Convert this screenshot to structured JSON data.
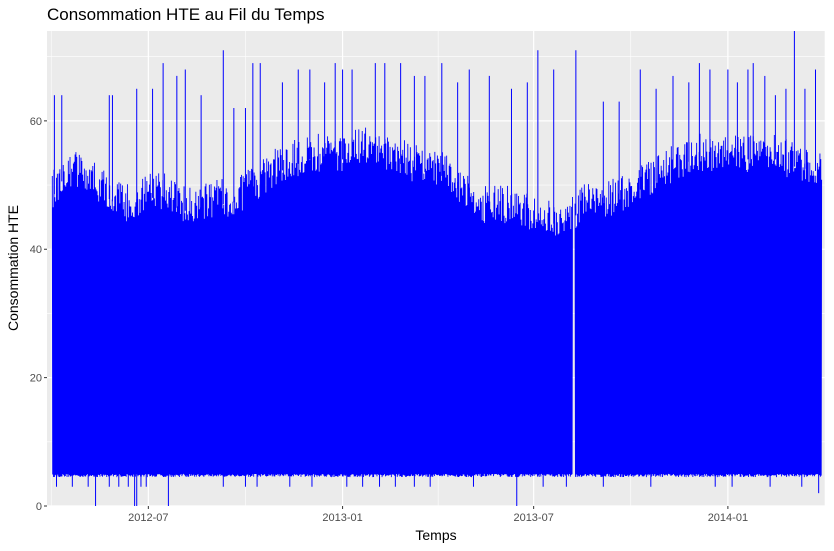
{
  "chart_data": {
    "type": "line",
    "title": "Consommation HTE au Fil du Temps",
    "xlabel": "Temps",
    "ylabel": "Consommation HTE",
    "xlim": [
      "2012-03-27",
      "2014-04-03"
    ],
    "ylim": [
      0,
      74
    ],
    "x_ticks": [
      {
        "date": "2012-07-01",
        "label": "2012-07"
      },
      {
        "date": "2013-01-01",
        "label": "2013-01"
      },
      {
        "date": "2013-07-01",
        "label": "2013-07"
      },
      {
        "date": "2014-01-01",
        "label": "2014-01"
      }
    ],
    "y_ticks": [
      {
        "value": 0,
        "label": "0"
      },
      {
        "value": 20,
        "label": "20"
      },
      {
        "value": 40,
        "label": "40"
      },
      {
        "value": 60,
        "label": "60"
      }
    ],
    "grid": true,
    "colors": {
      "panel_background": "#ebebeb",
      "grid": "#ffffff",
      "series": "#0000ff"
    },
    "series": [
      {
        "name": "",
        "range_start": "2012-04-01",
        "range_end": "2014-03-31",
        "typical_min": 4.5,
        "envelope": [
          [
            "2012-04-01",
            52
          ],
          [
            "2012-04-15",
            56
          ],
          [
            "2012-05-01",
            55
          ],
          [
            "2012-05-15",
            53
          ],
          [
            "2012-06-01",
            51
          ],
          [
            "2012-06-15",
            50
          ],
          [
            "2012-07-01",
            52
          ],
          [
            "2012-07-15",
            52
          ],
          [
            "2012-08-01",
            50
          ],
          [
            "2012-08-15",
            50
          ],
          [
            "2012-09-01",
            51
          ],
          [
            "2012-09-15",
            51
          ],
          [
            "2012-10-01",
            52
          ],
          [
            "2012-10-15",
            54
          ],
          [
            "2012-11-01",
            56
          ],
          [
            "2012-11-15",
            57
          ],
          [
            "2012-12-01",
            58
          ],
          [
            "2012-12-15",
            58
          ],
          [
            "2013-01-01",
            58
          ],
          [
            "2013-01-15",
            59
          ],
          [
            "2013-02-01",
            59
          ],
          [
            "2013-02-15",
            58
          ],
          [
            "2013-03-01",
            57
          ],
          [
            "2013-03-15",
            56
          ],
          [
            "2013-04-01",
            56
          ],
          [
            "2013-04-15",
            54
          ],
          [
            "2013-05-01",
            52
          ],
          [
            "2013-05-15",
            50
          ],
          [
            "2013-06-01",
            50
          ],
          [
            "2013-06-15",
            50
          ],
          [
            "2013-07-01",
            48
          ],
          [
            "2013-07-15",
            48
          ],
          [
            "2013-08-01",
            48
          ],
          [
            "2013-08-15",
            50
          ],
          [
            "2013-09-01",
            51
          ],
          [
            "2013-09-15",
            51
          ],
          [
            "2013-10-01",
            52
          ],
          [
            "2013-10-15",
            54
          ],
          [
            "2013-11-01",
            55
          ],
          [
            "2013-11-15",
            57
          ],
          [
            "2013-12-01",
            58
          ],
          [
            "2013-12-15",
            58
          ],
          [
            "2014-01-01",
            58
          ],
          [
            "2014-01-15",
            58
          ],
          [
            "2014-02-01",
            58
          ],
          [
            "2014-02-15",
            58
          ],
          [
            "2014-03-01",
            57
          ],
          [
            "2014-03-31",
            56
          ]
        ],
        "spikes": [
          [
            "2012-04-03",
            64
          ],
          [
            "2012-04-10",
            64
          ],
          [
            "2012-05-25",
            64
          ],
          [
            "2012-05-28",
            64
          ],
          [
            "2012-06-20",
            65
          ],
          [
            "2012-07-05",
            65
          ],
          [
            "2012-07-15",
            69
          ],
          [
            "2012-07-28",
            67
          ],
          [
            "2012-08-05",
            68
          ],
          [
            "2012-08-20",
            64
          ],
          [
            "2012-09-10",
            71
          ],
          [
            "2012-09-20",
            62
          ],
          [
            "2012-10-01",
            62
          ],
          [
            "2012-10-08",
            69
          ],
          [
            "2012-10-15",
            69
          ],
          [
            "2012-11-05",
            66
          ],
          [
            "2012-11-20",
            68
          ],
          [
            "2012-12-01",
            68
          ],
          [
            "2012-12-15",
            66
          ],
          [
            "2012-12-25",
            69
          ],
          [
            "2013-01-01",
            68
          ],
          [
            "2013-01-10",
            68
          ],
          [
            "2013-02-01",
            69
          ],
          [
            "2013-02-10",
            69
          ],
          [
            "2013-02-25",
            69
          ],
          [
            "2013-03-10",
            67
          ],
          [
            "2013-03-20",
            67
          ],
          [
            "2013-04-05",
            69
          ],
          [
            "2013-04-20",
            66
          ],
          [
            "2013-05-01",
            68
          ],
          [
            "2013-05-20",
            67
          ],
          [
            "2013-06-10",
            65
          ],
          [
            "2013-06-25",
            66
          ],
          [
            "2013-07-05",
            71
          ],
          [
            "2013-07-20",
            68
          ],
          [
            "2013-08-10",
            71
          ],
          [
            "2013-09-05",
            63
          ],
          [
            "2013-09-20",
            63
          ],
          [
            "2013-10-10",
            68
          ],
          [
            "2013-10-25",
            65
          ],
          [
            "2013-11-10",
            67
          ],
          [
            "2013-11-25",
            66
          ],
          [
            "2013-12-05",
            69
          ],
          [
            "2013-12-15",
            68
          ],
          [
            "2014-01-01",
            68
          ],
          [
            "2014-01-10",
            66
          ],
          [
            "2014-01-20",
            68
          ],
          [
            "2014-01-25",
            69
          ],
          [
            "2014-02-05",
            67
          ],
          [
            "2014-02-15",
            64
          ],
          [
            "2014-02-25",
            65
          ],
          [
            "2014-03-05",
            74
          ],
          [
            "2014-03-15",
            65
          ],
          [
            "2014-03-25",
            68
          ]
        ],
        "dips": [
          [
            "2012-04-05",
            3
          ],
          [
            "2012-04-20",
            3
          ],
          [
            "2012-05-05",
            3
          ],
          [
            "2012-05-12",
            0
          ],
          [
            "2012-05-25",
            3
          ],
          [
            "2012-06-03",
            3
          ],
          [
            "2012-06-12",
            3
          ],
          [
            "2012-06-18",
            0
          ],
          [
            "2012-06-20",
            0
          ],
          [
            "2012-06-24",
            3
          ],
          [
            "2012-06-29",
            3
          ],
          [
            "2012-07-20",
            0
          ],
          [
            "2012-09-10",
            3
          ],
          [
            "2012-10-01",
            3
          ],
          [
            "2012-10-12",
            3
          ],
          [
            "2012-11-12",
            3
          ],
          [
            "2012-12-03",
            3
          ],
          [
            "2013-01-05",
            3
          ],
          [
            "2013-01-20",
            3
          ],
          [
            "2013-02-05",
            3
          ],
          [
            "2013-02-20",
            3
          ],
          [
            "2013-03-10",
            3
          ],
          [
            "2013-03-25",
            3
          ],
          [
            "2013-05-05",
            3
          ],
          [
            "2013-06-15",
            0
          ],
          [
            "2013-07-10",
            3
          ],
          [
            "2013-08-01",
            3
          ],
          [
            "2013-09-05",
            3
          ],
          [
            "2013-10-20",
            3
          ],
          [
            "2013-12-20",
            3
          ],
          [
            "2014-01-05",
            3
          ],
          [
            "2014-02-10",
            3
          ],
          [
            "2014-03-12",
            3
          ],
          [
            "2014-03-28",
            2
          ]
        ],
        "gap_dates": [
          "2013-08-08"
        ]
      }
    ]
  }
}
